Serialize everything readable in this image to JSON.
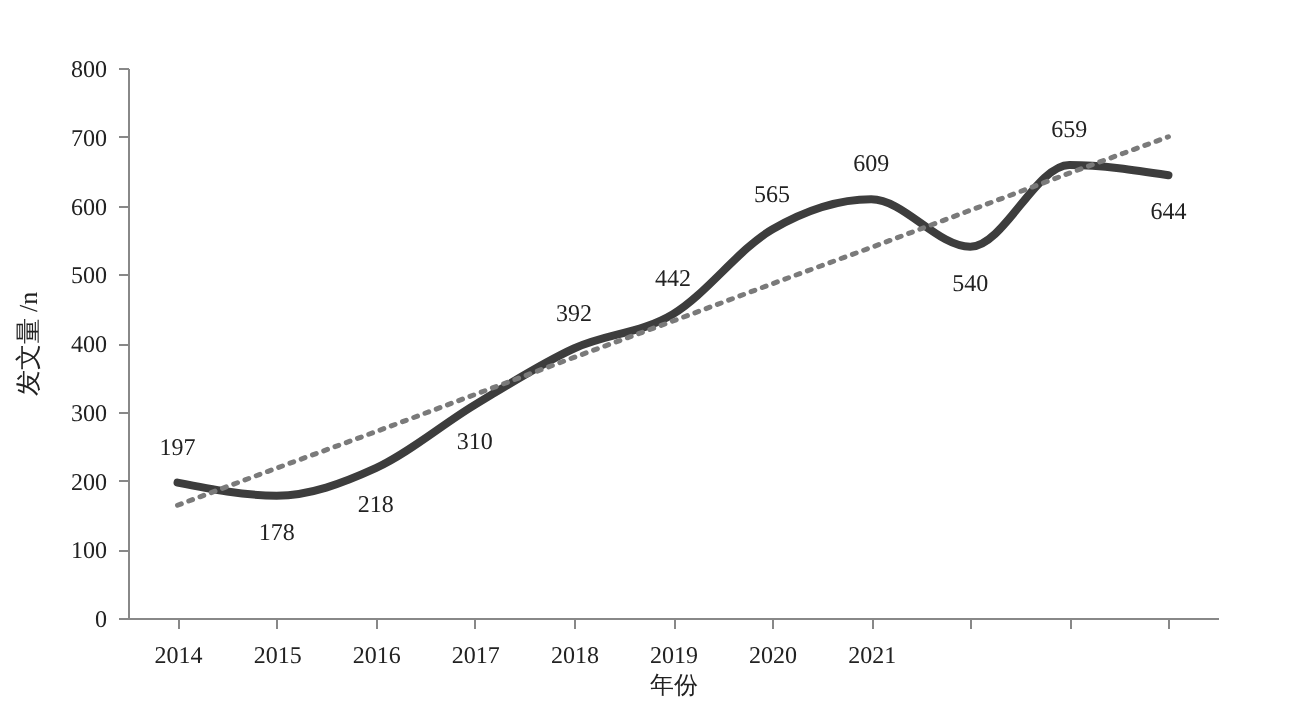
{
  "chart_data": {
    "type": "line",
    "xlabel": "年份",
    "ylabel": "发文量 /n",
    "categories": [
      "2014",
      "2015",
      "2016",
      "2017",
      "2018",
      "2019",
      "2020",
      "2021",
      null,
      null,
      null
    ],
    "series": [
      {
        "color": "#3d3d3d",
        "values": [
          197,
          178,
          218,
          310,
          392,
          442,
          565,
          609,
          540,
          659,
          644
        ],
        "line_style": "solid",
        "data_labels": true
      },
      {
        "color": "#7a7a7a",
        "values": [
          164,
          218,
          271,
          325,
          379,
          432,
          486,
          539,
          593,
          647,
          700
        ],
        "line_style": "dotted"
      }
    ],
    "ylim": [
      0,
      800
    ],
    "yticks": [
      0,
      100,
      200,
      300,
      400,
      500,
      600,
      700,
      800
    ],
    "marker": "none"
  }
}
